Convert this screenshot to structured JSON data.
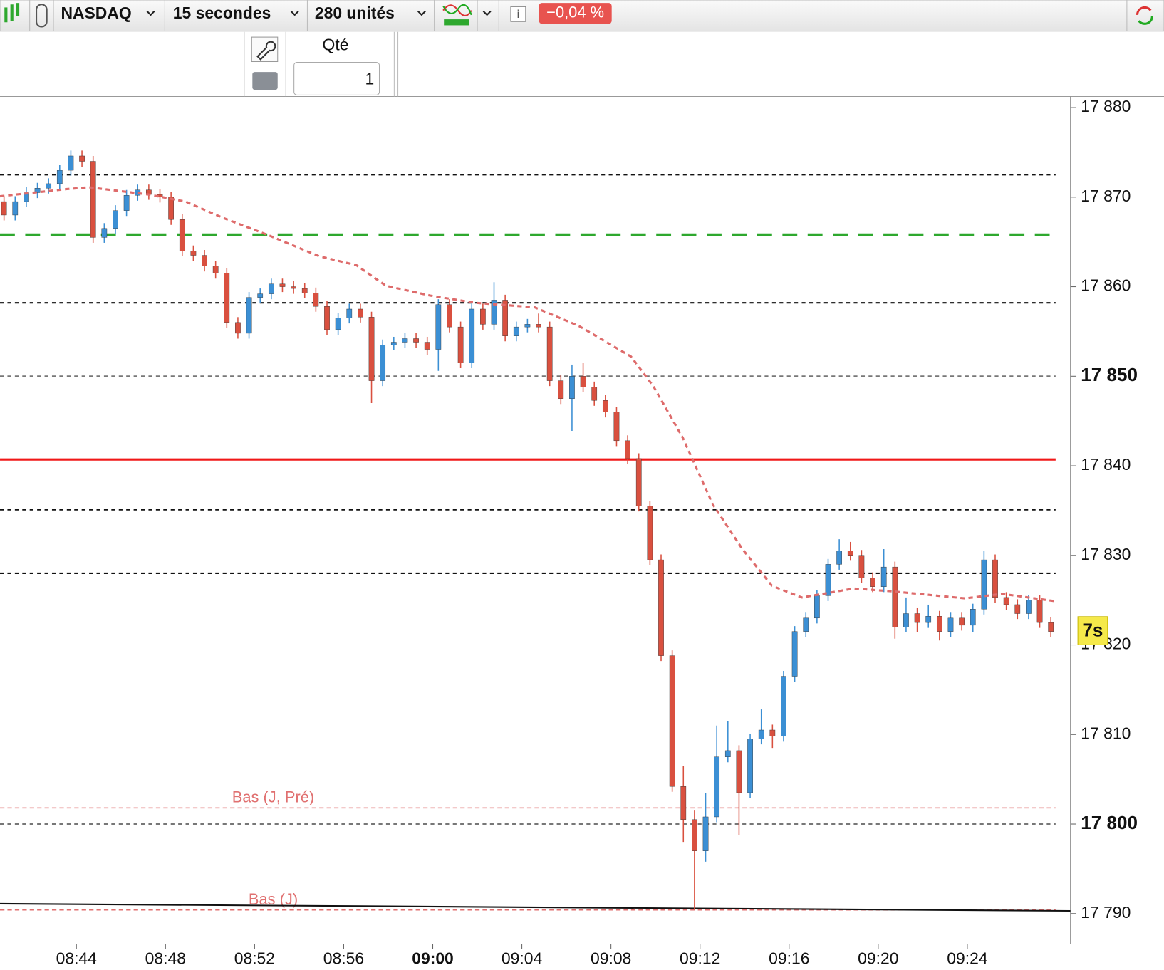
{
  "toolbar": {
    "symbol": "NASDAQ",
    "interval": "15 secondes",
    "units": "280 unités",
    "change": "−0,04 %"
  },
  "order_panel": {
    "qty_label": "Qté",
    "qty": 1
  },
  "chart_data": {
    "type": "candlestick",
    "xlim": [
      520.57,
      568.63
    ],
    "ylim": [
      17786.6,
      17881.24
    ],
    "xticks": [
      {
        "value": 524,
        "label": "08:44"
      },
      {
        "value": 528,
        "label": "08:48"
      },
      {
        "value": 532,
        "label": "08:52"
      },
      {
        "value": 536,
        "label": "08:56"
      },
      {
        "value": 540,
        "label": "09:00",
        "bold": true
      },
      {
        "value": 544,
        "label": "09:04"
      },
      {
        "value": 548,
        "label": "09:08"
      },
      {
        "value": 552,
        "label": "09:12"
      },
      {
        "value": 556,
        "label": "09:16"
      },
      {
        "value": 560,
        "label": "09:20"
      },
      {
        "value": 564,
        "label": "09:24"
      }
    ],
    "yticks": [
      {
        "value": 17880,
        "label": "17 880"
      },
      {
        "value": 17870,
        "label": "17 870"
      },
      {
        "value": 17860,
        "label": "17 860"
      },
      {
        "value": 17850,
        "label": "17 850",
        "bold": true
      },
      {
        "value": 17840,
        "label": "17 840"
      },
      {
        "value": 17830,
        "label": "17 830"
      },
      {
        "value": 17820,
        "label": "17 820"
      },
      {
        "value": 17810,
        "label": "17 810"
      },
      {
        "value": 17800,
        "label": "17 800",
        "bold": true
      },
      {
        "value": 17790,
        "label": "17 790"
      }
    ],
    "up_color": "#3b8fd4",
    "down_color": "#d9503f",
    "x": [
      520.75,
      521.25,
      521.75,
      522.25,
      522.75,
      523.25,
      523.75,
      524.25,
      524.75,
      525.25,
      525.75,
      526.25,
      526.75,
      527.25,
      527.75,
      528.25,
      528.75,
      529.25,
      529.75,
      530.25,
      530.75,
      531.25,
      531.75,
      532.25,
      532.75,
      533.25,
      533.75,
      534.25,
      534.75,
      535.25,
      535.75,
      536.25,
      536.75,
      537.25,
      537.75,
      538.25,
      538.75,
      539.25,
      539.75,
      540.25,
      540.75,
      541.25,
      541.75,
      542.25,
      542.75,
      543.25,
      543.75,
      544.25,
      544.75,
      545.25,
      545.75,
      546.25,
      546.75,
      547.25,
      547.75,
      548.25,
      548.75,
      549.25,
      549.75,
      550.25,
      550.75,
      551.25,
      551.75,
      552.25,
      552.75,
      553.25,
      553.75,
      554.25,
      554.75,
      555.25,
      555.75,
      556.25,
      556.75,
      557.25,
      557.75,
      558.25,
      558.75,
      559.25,
      559.75,
      560.25,
      560.75,
      561.25,
      561.75,
      562.25,
      562.75,
      563.25,
      563.75,
      564.25,
      564.75,
      565.25,
      565.75,
      566.25,
      566.75,
      567.25,
      567.75
    ],
    "open": [
      17869.5,
      17868,
      17869.5,
      17870.5,
      17871,
      17871.5,
      17873,
      17874.6,
      17874,
      17865.5,
      17866.5,
      17868.5,
      17870.2,
      17870.8,
      17870.3,
      17870,
      17867.5,
      17864,
      17863.5,
      17862.3,
      17861.5,
      17856,
      17854.8,
      17858.8,
      17859.2,
      17860.3,
      17860,
      17859.8,
      17859.3,
      17857.8,
      17855.2,
      17856.5,
      17857.5,
      17856.6,
      17849.5,
      17853.5,
      17853.8,
      17854.2,
      17853.8,
      17853,
      17858,
      17855.5,
      17851.5,
      17857.5,
      17855.8,
      17858.5,
      17854.5,
      17855.5,
      17855.8,
      17855.5,
      17849.5,
      17847.5,
      17850,
      17848.8,
      17847.3,
      17846,
      17842.8,
      17840.8,
      17835.5,
      17829.5,
      17818.8,
      17804.2,
      17800.5,
      17797,
      17800.8,
      17807.5,
      17808.2,
      17803.5,
      17809.5,
      17810.5,
      17809.8,
      17816.5,
      17821.5,
      17823,
      17825.5,
      17829,
      17830.5,
      17830,
      17827.5,
      17826.5,
      17828.7,
      17822,
      17823.5,
      17822.5,
      17823.2,
      17821.5,
      17823,
      17822.2,
      17824,
      17829.5,
      17825.3,
      17824.5,
      17823.5,
      17825,
      17822.5
    ],
    "high": [
      17870.1,
      17870.1,
      17871.1,
      17871.6,
      17872.1,
      17873.6,
      17875.2,
      17875.2,
      17874.6,
      17867.1,
      17869.1,
      17870.8,
      17871.4,
      17871.4,
      17870.9,
      17870.6,
      17868.1,
      17864.6,
      17864.1,
      17862.9,
      17862.1,
      17856.6,
      17859.4,
      17859.8,
      17860.9,
      17860.9,
      17860.6,
      17860.4,
      17859.9,
      17858.4,
      17857.1,
      17858.1,
      17858.1,
      17857.2,
      17854.1,
      17854.4,
      17854.8,
      17854.8,
      17854.4,
      17858.6,
      17858.6,
      17856.1,
      17858.1,
      17858.1,
      17860.5,
      17859.1,
      17856.1,
      17856.4,
      17857.0,
      17856.1,
      17850.1,
      17851.3,
      17851.5,
      17849.4,
      17847.9,
      17846.6,
      17843.4,
      17841.4,
      17836.1,
      17830.1,
      17819.4,
      17806.5,
      17801.5,
      17803.5,
      17811.0,
      17811.5,
      17808.8,
      17810.1,
      17812.8,
      17811.1,
      17817.1,
      17822.1,
      17823.6,
      17826.1,
      17829.6,
      17831.8,
      17831.5,
      17830.6,
      17828.1,
      17830.7,
      17829.3,
      17825.3,
      17824.1,
      17824.5,
      17823.8,
      17823.6,
      17823.6,
      17824.6,
      17830.5,
      17830.1,
      17825.9,
      17825.1,
      17825.6,
      17825.6,
      17823.1
    ],
    "low": [
      17867.4,
      17867.4,
      17868.9,
      17869.9,
      17870.4,
      17870.9,
      17872.4,
      17873.4,
      17864.9,
      17864.9,
      17865.9,
      17867.9,
      17869.6,
      17869.7,
      17869.4,
      17866.9,
      17863.4,
      17862.9,
      17861.7,
      17860.9,
      17855.4,
      17854.2,
      17854.2,
      17858.2,
      17858.6,
      17859.4,
      17859.2,
      17858.7,
      17857.2,
      17854.6,
      17854.6,
      17855.9,
      17856.0,
      17847.0,
      17848.9,
      17852.9,
      17853.2,
      17853.2,
      17852.4,
      17850.6,
      17854.9,
      17850.9,
      17850.9,
      17855.2,
      17855.2,
      17853.9,
      17853.9,
      17854.9,
      17854.9,
      17848.9,
      17846.9,
      17843.9,
      17848.2,
      17846.7,
      17845.4,
      17842.2,
      17840.2,
      17834.9,
      17828.9,
      17818.2,
      17803.6,
      17798.0,
      17790.4,
      17795.8,
      17800.2,
      17806.9,
      17798.8,
      17802.9,
      17808.9,
      17808.5,
      17809.2,
      17815.9,
      17820.9,
      17822.4,
      17824.9,
      17828.4,
      17829.4,
      17826.9,
      17825.9,
      17825.9,
      17820.7,
      17821.4,
      17821.4,
      17821.9,
      17820.5,
      17820.9,
      17821.6,
      17821.4,
      17823.4,
      17824.7,
      17823.9,
      17822.9,
      17822.9,
      17821.9,
      17820.9
    ],
    "close": [
      17868,
      17869.5,
      17870.5,
      17871,
      17871.5,
      17873,
      17874.6,
      17874,
      17865.5,
      17866.5,
      17868.5,
      17870.2,
      17870.8,
      17870.3,
      17870,
      17867.5,
      17864,
      17863.5,
      17862.3,
      17861.5,
      17856,
      17854.8,
      17858.8,
      17859.2,
      17860.3,
      17860,
      17859.8,
      17859.3,
      17857.8,
      17855.2,
      17856.5,
      17857.5,
      17856.6,
      17849.5,
      17853.5,
      17853.8,
      17854.2,
      17853.8,
      17853,
      17858,
      17855.5,
      17851.5,
      17857.5,
      17855.8,
      17858.5,
      17854.5,
      17855.5,
      17855.8,
      17855.5,
      17849.5,
      17847.5,
      17850,
      17848.8,
      17847.3,
      17846,
      17842.8,
      17840.8,
      17835.5,
      17829.5,
      17818.8,
      17804.2,
      17800.5,
      17797,
      17800.8,
      17807.5,
      17808.2,
      17803.5,
      17809.5,
      17810.5,
      17809.8,
      17816.5,
      17821.5,
      17823,
      17825.5,
      17829,
      17830.5,
      17830,
      17827.5,
      17826.5,
      17828.7,
      17822,
      17823.5,
      17822.5,
      17823.2,
      17821.5,
      17823,
      17822.2,
      17824,
      17829.5,
      17825.3,
      17824.5,
      17823.5,
      17825,
      17822.5,
      17821.5
    ],
    "moving_average": {
      "color": "#de6b6b",
      "x": [
        520.57,
        523.57,
        524.57,
        527.23,
        528.9,
        530.57,
        532.57,
        534.9,
        536.57,
        537.9,
        539.9,
        541.9,
        544.57,
        546.57,
        548.9,
        549.9,
        551.23,
        552.57,
        553.9,
        555.23,
        556.57,
        558.9,
        560.57,
        563.9,
        565.57,
        567.9
      ],
      "values": [
        17870.1,
        17870.9,
        17871.1,
        17870.3,
        17869.5,
        17867.7,
        17865.8,
        17863.4,
        17862.4,
        17860.1,
        17859.0,
        17858.2,
        17857.7,
        17855.6,
        17852.2,
        17848.9,
        17843.1,
        17835.7,
        17830.7,
        17826.6,
        17825.3,
        17826.3,
        17826.0,
        17825.2,
        17825.7,
        17824.9
      ]
    },
    "trend_line": {
      "color": "#111111",
      "x": [
        520.57,
        568.63
      ],
      "values": [
        17791.1,
        17790.3
      ]
    },
    "lines": [
      {
        "value": 17872.5,
        "color": "#111111",
        "style": "dotted"
      },
      {
        "value": 17865.8,
        "color": "#2ea82e",
        "style": "long-dash"
      },
      {
        "value": 17858.2,
        "color": "#111111",
        "style": "dotted"
      },
      {
        "value": 17850,
        "color": "#777777",
        "style": "dotted"
      },
      {
        "value": 17840.7,
        "color": "#f01818",
        "style": "solid"
      },
      {
        "value": 17835.1,
        "color": "#111111",
        "style": "dotted"
      },
      {
        "value": 17828.0,
        "color": "#111111",
        "style": "dotted"
      },
      {
        "value": 17801.8,
        "color": "#e07070",
        "style": "thin-dash",
        "label": "Bas (J, Pré)"
      },
      {
        "value": 17800,
        "color": "#777777",
        "style": "dotted"
      },
      {
        "value": 17790.4,
        "color": "#e07070",
        "style": "thin-dash",
        "label": "Bas (J)"
      }
    ],
    "countdown": "7s"
  }
}
